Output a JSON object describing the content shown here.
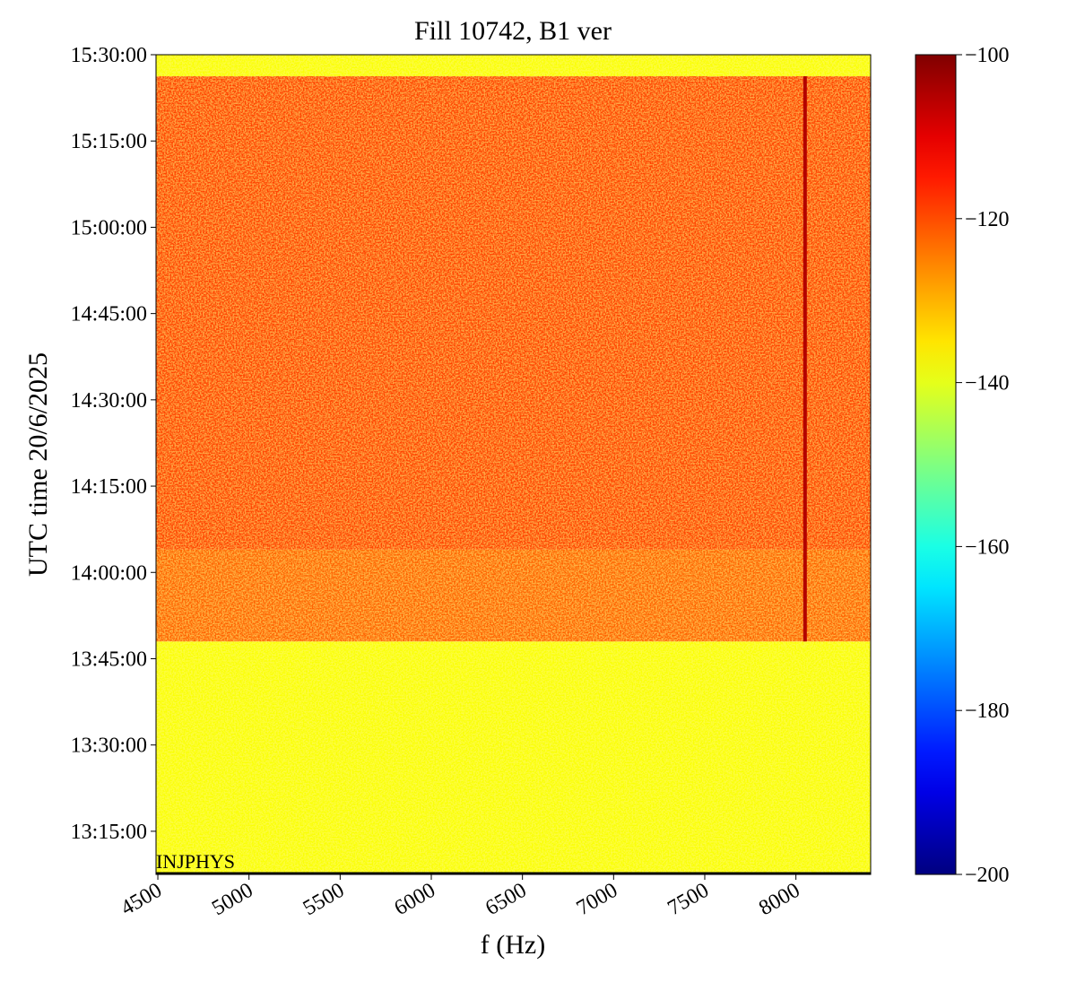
{
  "chart_data": {
    "type": "spectrogram",
    "title": "Fill 10742, B1 ver",
    "x_label": "f (Hz)",
    "y_label": "UTC time 20/6/2025",
    "annotation": "INJPHYS",
    "colormap": "jet",
    "xlim": [
      4490,
      8410
    ],
    "xticks": [
      4500,
      5000,
      5500,
      6000,
      6500,
      7000,
      7500,
      8000
    ],
    "ylim": [
      "13:07:30",
      "15:30:00"
    ],
    "yticks": [
      "13:15:00",
      "13:30:00",
      "13:45:00",
      "14:00:00",
      "14:15:00",
      "14:30:00",
      "14:45:00",
      "15:00:00",
      "15:15:00",
      "15:30:00"
    ],
    "colorbar": {
      "lim": [
        -200,
        -100
      ],
      "ticks": [
        {
          "value": -200,
          "label": "−200"
        },
        {
          "value": -180,
          "label": "−180"
        },
        {
          "value": -160,
          "label": "−160"
        },
        {
          "value": -140,
          "label": "−140"
        },
        {
          "value": -120,
          "label": "−120"
        },
        {
          "value": -100,
          "label": "−100"
        }
      ]
    },
    "bands": [
      {
        "start": "13:07:30",
        "end": "13:48:00",
        "value": -138
      },
      {
        "start": "13:48:00",
        "end": "14:04:00",
        "value": -122
      },
      {
        "start": "14:04:00",
        "end": "15:26:15",
        "value": -119
      },
      {
        "start": "15:26:15",
        "end": "15:30:00",
        "value": -138
      }
    ],
    "lines": [
      {
        "x": 8050,
        "start": "13:48:00",
        "end": "15:26:15",
        "value": -105
      }
    ]
  }
}
